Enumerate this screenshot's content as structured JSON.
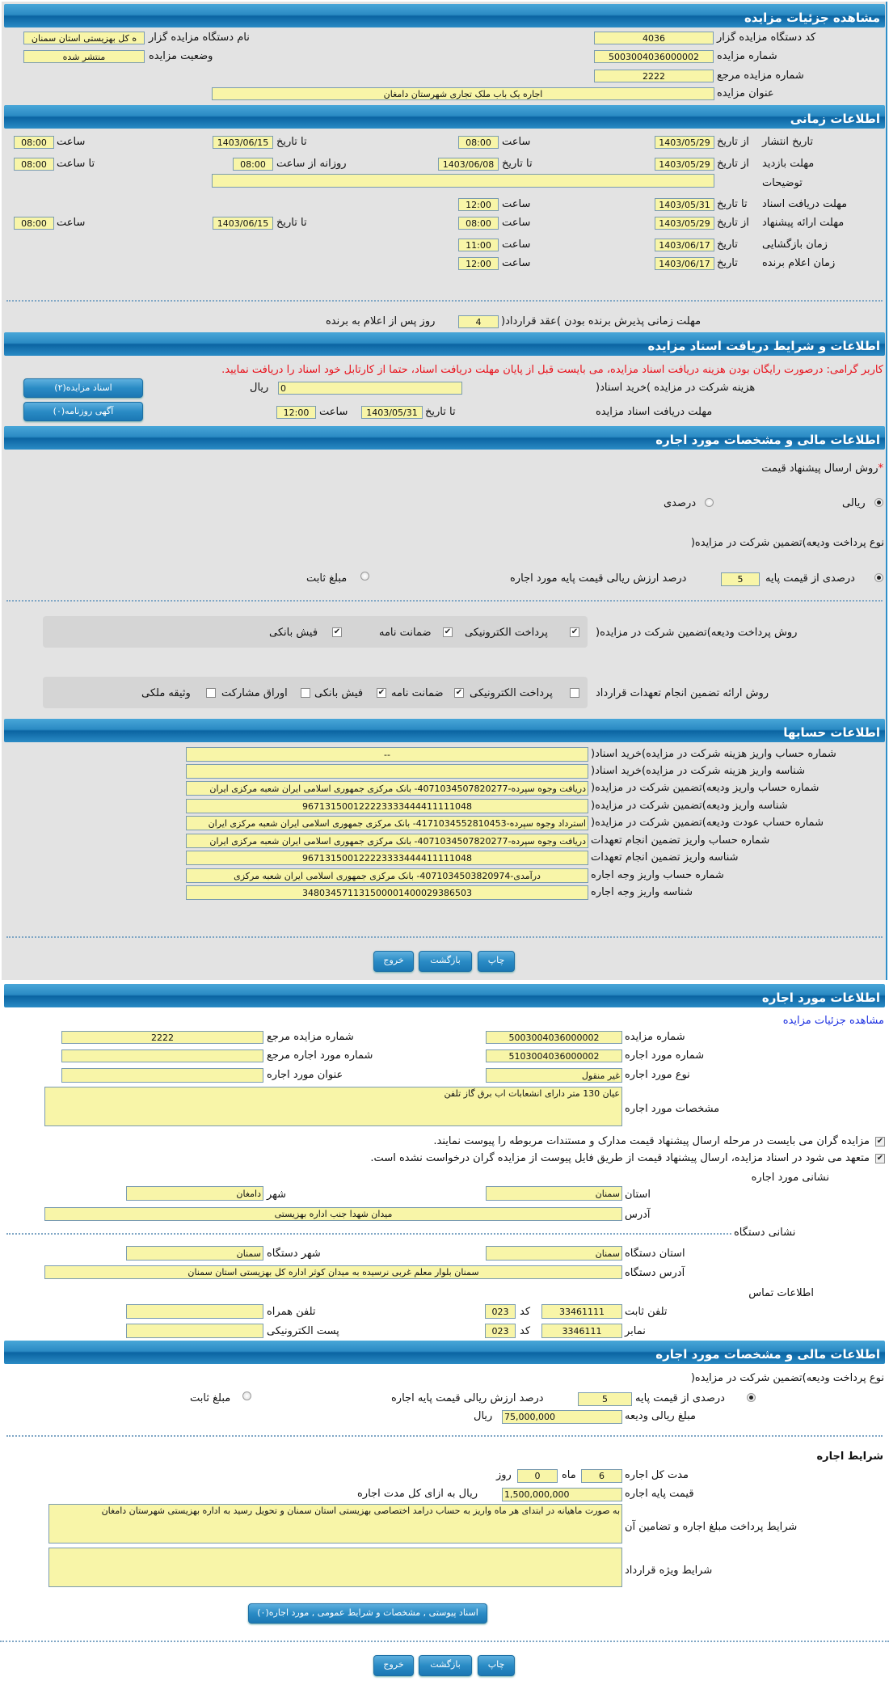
{
  "colors": {
    "header": "#2b8bc4",
    "field": "#f8f5a8",
    "warning": "#e8101a",
    "link": "#1a2ee0",
    "panel": "#e3e3e3"
  },
  "details": {
    "title": "مشاهده جزئیات مزایده",
    "org_code_label": "کد دستگاه مزایده گزار",
    "org_code": "4036",
    "org_name_label": "نام دستگاه مزایده گزار",
    "org_name": "ه کل بهزیستی استان سمنان",
    "auction_no_label": "شماره مزایده",
    "auction_no": "5003004036000002",
    "status_label": "وضعیت مزایده",
    "status": "منتشر شده",
    "ref_no_label": "شماره مزایده مرجع",
    "ref_no": "2222",
    "subject_label": "عنوان مزایده",
    "subject": "اجاره یک باب ملک تجاری شهرستان دامغان"
  },
  "timing": {
    "title": "اطلاعات زمانی",
    "from_date": "از تاریخ",
    "to_date": "تا تاریخ",
    "date": "تاریخ",
    "time": "ساعت",
    "to_time": "تا ساعت",
    "daily_from": "روزانه از ساعت",
    "publish": {
      "label": "تاریخ انتشار",
      "from": "1403/05/29",
      "from_time": "08:00",
      "to": "1403/06/15",
      "to_time": "08:00"
    },
    "visit": {
      "label": "مهلت بازدید",
      "from": "1403/05/29",
      "to": "1403/06/08",
      "daily_from": "08:00",
      "daily_to": "08:00"
    },
    "notes_label": "توضیحات",
    "notes": "",
    "docs": {
      "label": "مهلت دریافت اسناد",
      "to": "1403/05/31",
      "time": "12:00"
    },
    "offer": {
      "label": "مهلت ارائه پیشنهاد",
      "from": "1403/05/29",
      "from_time": "08:00",
      "to": "1403/06/15",
      "to_time": "08:00"
    },
    "opening": {
      "label": "زمان بازگشایی",
      "date": "1403/06/17",
      "time": "11:00"
    },
    "winner": {
      "label": "زمان اعلام برنده",
      "date": "1403/06/17",
      "time": "12:00"
    },
    "acceptance_label": "مهلت زمانی پذیرش برنده بودن )عقد قرارداد(",
    "acceptance_days": "4",
    "acceptance_suffix": "روز پس از اعلام به برنده"
  },
  "docs": {
    "title": "اطلاعات و شرایط دریافت اسناد مزایده",
    "warning": "کاربر گرامی: درصورت رایگان بودن هزینه دریافت اسناد مزایده، می بایست قبل از پایان مهلت دریافت اسناد، حتما از کارتابل خود اسناد را دریافت نمایید.",
    "fee_label": "هزینه شرکت در مزایده )خرید اسناد(",
    "fee": "0",
    "rial": "ریال",
    "deadline_label": "مهلت دریافت اسناد مزایده",
    "to_date": "تا تاریخ",
    "date": "1403/05/31",
    "time_label": "ساعت",
    "time": "12:00",
    "docs_button": "اسناد مزایده(۲)",
    "ads_button": "آگهی روزنامه(۰)"
  },
  "financial": {
    "title": "اطلاعات مالی و مشخصات مورد اجاره",
    "required_mark": "*",
    "price_method_label": "روش ارسال پیشنهاد قیمت",
    "price_methods": [
      {
        "label": "ریالی",
        "selected": true
      },
      {
        "label": "درصدی",
        "selected": false
      }
    ],
    "deposit_type_label": "نوع پرداخت ودیعه)تضمین شرکت در مزایده(",
    "percent_label": "درصدی از قیمت پایه",
    "percent": "5",
    "percent_suffix": "درصد ارزش ریالی قیمت پایه مورد اجاره",
    "percent_selected": true,
    "fixed_label": "مبلغ ثابت",
    "fixed_selected": false,
    "deposit_method_label": "روش پرداخت ودیعه)تضمین شرکت در مزایده(",
    "deposit_methods": [
      {
        "label": "پرداخت الکترونیکی",
        "checked": true
      },
      {
        "label": "ضمانت نامه",
        "checked": true
      },
      {
        "label": "فیش بانکی",
        "checked": true
      }
    ],
    "guarantee_label": "روش ارائه تضمین انجام تعهدات قرارداد",
    "guarantee_methods": [
      {
        "label": "پرداخت الکترونیکی",
        "checked": false
      },
      {
        "label": "ضمانت نامه",
        "checked": true
      },
      {
        "label": "فیش بانکی",
        "checked": true
      },
      {
        "label": "اوراق مشارکت",
        "checked": false
      },
      {
        "label": "وثیقه ملکی",
        "checked": false
      }
    ]
  },
  "accounts": {
    "title": "اطلاعات حسابها",
    "rows": [
      {
        "label": "شماره حساب واریز هزینه شرکت در مزایده)خرید اسناد(",
        "value": "--"
      },
      {
        "label": "شناسه واریز هزینه شرکت در مزایده)خرید اسناد(",
        "value": ""
      },
      {
        "label": "شماره حساب واریز ودیعه)تضمین شرکت در مزایده(",
        "value": "دریافت وجوه سپرده-4071034507820277- بانک مرکزی جمهوری اسلامی ایران شعبه مرکزی ایران"
      },
      {
        "label": "شناسه واریز ودیعه)تضمین شرکت در مزایده(",
        "value": "967131500122223333444411111048"
      },
      {
        "label": "شماره حساب عودت ودیعه)تضمین شرکت در مزایده(",
        "value": "استرداد وجوه سپرده-4171034552810453- بانک مرکزی جمهوری اسلامی ایران شعبه مرکزی ایران"
      },
      {
        "label": "شماره حساب واریز تضمین انجام تعهدات",
        "value": "دریافت وجوه سپرده-4071034507820277- بانک مرکزی جمهوری اسلامی ایران شعبه مرکزی ایران"
      },
      {
        "label": "شناسه واریز تضمین انجام تعهدات",
        "value": "967131500122223333444411111048"
      },
      {
        "label": "شماره حساب واریز وجه اجاره",
        "value": "درآمدی-4071034503820974- بانک مرکزی جمهوری اسلامی ایران شعبه مرکزی"
      },
      {
        "label": "شناسه واریز وجه اجاره",
        "value": "348034571131500001400029386503"
      }
    ]
  },
  "actions": {
    "print": "چاپ",
    "back": "بازگشت",
    "exit": "خروج"
  },
  "item": {
    "title": "اطلاعات مورد اجاره",
    "details_link": "مشاهده جزئیات مزایده",
    "auction_no_label": "شماره مزایده",
    "auction_no": "5003004036000002",
    "ref_no_label": "شماره مزایده مرجع",
    "ref_no": "2222",
    "item_no_label": "شماره مورد اجاره",
    "item_no": "5103004036000002",
    "ref_item_label": "شماره مورد اجاره مرجع",
    "ref_item": "",
    "type_label": "نوع مورد اجاره",
    "type": "غیر منقول",
    "item_title_label": "عنوان مورد اجاره",
    "item_title": "",
    "spec_label": "مشخصات مورد اجاره",
    "spec": "عیان 130 متر دارای انشعابات اب برق گاز تلفن",
    "check1": "مزایده گران می بایست در مرحله ارسال پیشنهاد قیمت مدارک و مستندات مربوطه را پیوست نمایند.",
    "check2": "متعهد می شود در اسناد مزایده، ارسال پیشنهاد قیمت از طریق فایل پیوست از مزایده گران درخواست نشده است.",
    "address_title": "نشانی مورد اجاره",
    "province_label": "استان",
    "province": "سمنان",
    "city_label": "شهر",
    "city": "دامغان",
    "address_label": "آدرس",
    "address": "میدان شهدا جنب اداره بهزیستی",
    "org_address_title": "نشانی دستگاه",
    "org_province_label": "استان دستگاه",
    "org_province": "سمنان",
    "org_city_label": "شهر دستگاه",
    "org_city": "سمنان",
    "org_address_label": "آدرس دستگاه",
    "org_address": "سمنان بلوار معلم غربی نرسیده به میدان کوثر اداره کل بهزیستی استان سمنان",
    "contact_title": "اطلاعات تماس",
    "phone_label": "تلفن ثابت",
    "phone": "33461111",
    "code_label": "کد",
    "phone_code": "023",
    "mobile_label": "تلفن همراه",
    "mobile": "",
    "fax_label": "نمابر",
    "fax": "3346111",
    "fax_code": "023",
    "email_label": "پست الکترونیکی",
    "email": ""
  },
  "item_financial": {
    "title": "اطلاعات مالی و مشخصات مورد اجاره",
    "deposit_type_label": "نوع پرداخت ودیعه)تضمین شرکت در مزایده(",
    "percent_label": "درصدی از قیمت پایه",
    "percent": "5",
    "percent_suffix": "درصد ارزش ریالی قیمت پایه اجاره",
    "percent_selected": true,
    "fixed_label": "مبلغ ثابت",
    "fixed_selected": false,
    "deposit_amount_label": "مبلغ ریالی ودیعه",
    "deposit_amount": "75,000,000",
    "rial": "ریال",
    "terms_title": "شرایط اجاره",
    "duration_label": "مدت کل اجاره",
    "months": "6",
    "month_label": "ماه",
    "days": "0",
    "day_label": "روز",
    "base_price_label": "قیمت پایه اجاره",
    "base_price": "1,500,000,000",
    "base_price_suffix": "ریال به ازای کل مدت اجاره",
    "payment_terms_label": "شرایط پرداخت مبلغ اجاره و تضامین آن",
    "payment_terms": "به صورت ماهیانه در ابتدای هر ماه واریز به حساب درامد اختصاصی بهزیستی استان سمنان و تحویل رسید به اداره بهزیستی شهرستان دامغان",
    "special_terms_label": "شرایط ویژه قرارداد",
    "special_terms": "",
    "attachments_button": "اسناد پیوستی , مشخصات و شرایط عمومی , مورد اجاره(۰)"
  }
}
